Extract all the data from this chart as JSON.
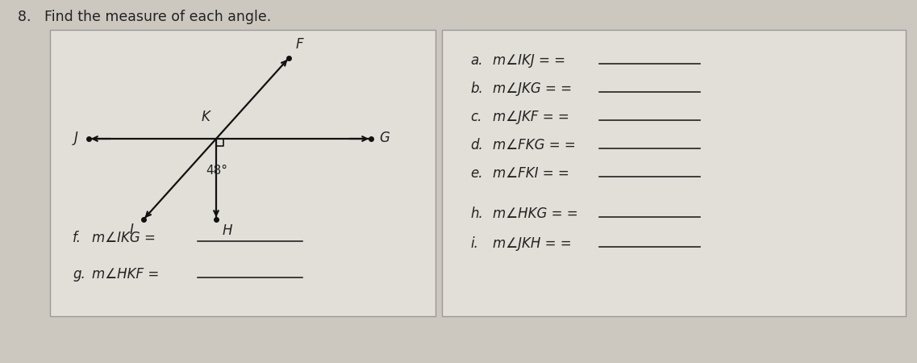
{
  "title": "8.   Find the measure of each angle.",
  "bg_color": "#ccc8c0",
  "box_bg": "#e2dfd8",
  "box_border": "#999999",
  "angle_label": "48°",
  "left_questions": [
    [
      "f.",
      "m∠IKG ="
    ],
    [
      "g.",
      "m∠HKF ="
    ]
  ],
  "right_questions": [
    [
      "a.",
      "m∠IKJ ="
    ],
    [
      "b.",
      "m∠JKG ="
    ],
    [
      "c.",
      "m∠JKF ="
    ],
    [
      "d.",
      "m∠FKG ="
    ],
    [
      "e.",
      "m∠FKI ="
    ],
    [
      "h.",
      "m∠HKG ="
    ],
    [
      "i.",
      "m∠JKH ="
    ]
  ],
  "line_color": "#111111",
  "text_color": "#222222"
}
